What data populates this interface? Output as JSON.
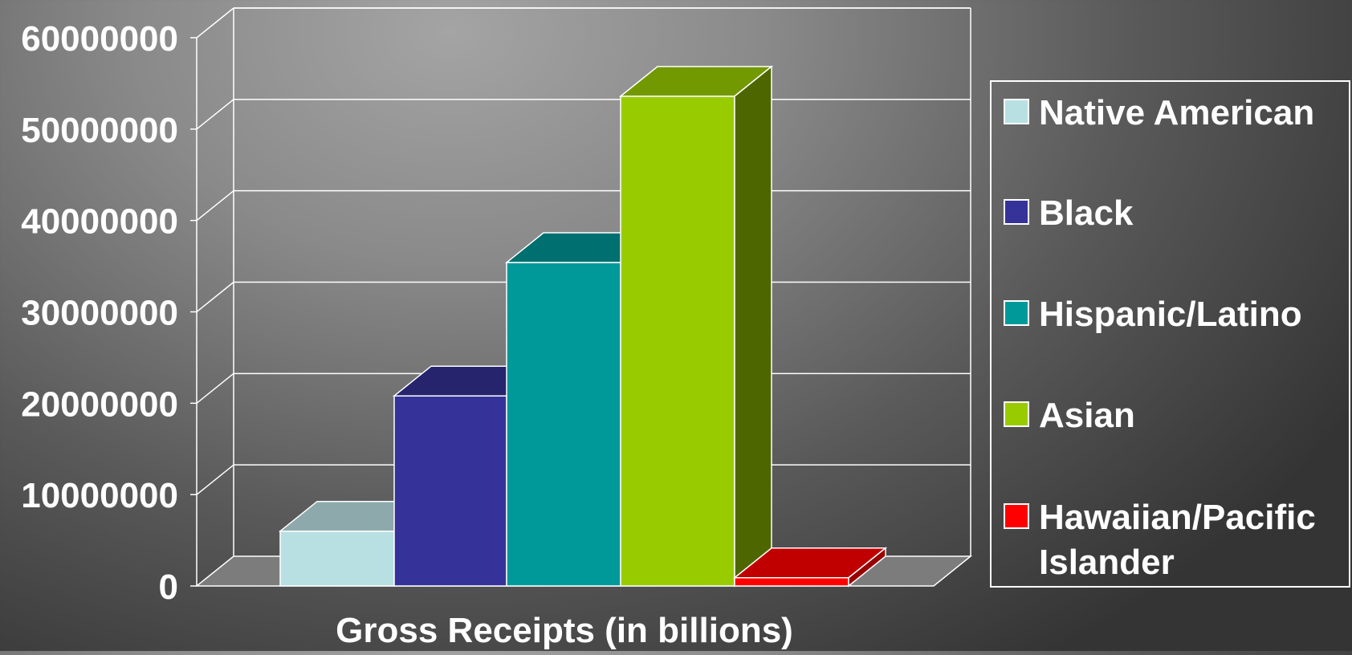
{
  "chart_data": {
    "type": "bar",
    "title": "",
    "xlabel": "Gross Receipts (in billions)",
    "ylabel": "",
    "ylim": [
      0,
      60000000
    ],
    "yticks": [
      "0",
      "10000000",
      "20000000",
      "30000000",
      "40000000",
      "50000000",
      "60000000"
    ],
    "grid": true,
    "three_d": true,
    "legend_position": "right",
    "categories": [
      "Gross Receipts (in billions)"
    ],
    "series": [
      {
        "name": "Native American",
        "values": [
          6000000
        ],
        "color": "#b8e0e2",
        "top": "#8ea9ab",
        "side": "#6e8a8c"
      },
      {
        "name": "Black",
        "values": [
          20800000
        ],
        "color": "#353399",
        "top": "#25246d",
        "side": "#1f1e5a"
      },
      {
        "name": "Hispanic/Latino",
        "values": [
          35400000
        ],
        "color": "#009999",
        "top": "#006f6f",
        "side": "#005c5c"
      },
      {
        "name": "Asian",
        "values": [
          53600000
        ],
        "color": "#99cc00",
        "top": "#739900",
        "side": "#4e6600"
      },
      {
        "name": "Hawaiian/Pacific Islander",
        "values": [
          900000
        ],
        "color": "#ff0000",
        "top": "#c00000",
        "side": "#9a0000"
      }
    ]
  },
  "legend_lines": [
    [
      "Native American"
    ],
    [
      "Black"
    ],
    [
      "Hispanic/Latino"
    ],
    [
      "Asian"
    ],
    [
      "Hawaiian/Pacific",
      "Islander"
    ]
  ]
}
